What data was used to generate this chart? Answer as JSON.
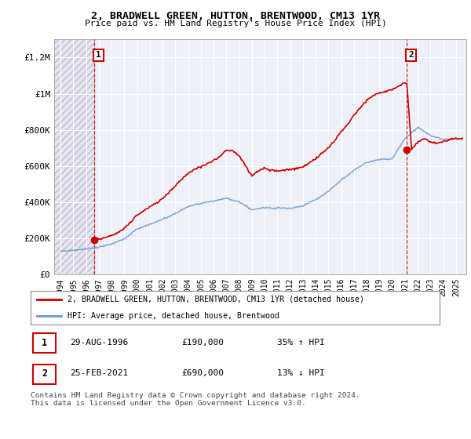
{
  "title": "2, BRADWELL GREEN, HUTTON, BRENTWOOD, CM13 1YR",
  "subtitle": "Price paid vs. HM Land Registry's House Price Index (HPI)",
  "ylabel_vals": [
    "£0",
    "£200K",
    "£400K",
    "£600K",
    "£800K",
    "£1M",
    "£1.2M"
  ],
  "ylim": [
    0,
    1300000
  ],
  "yticks": [
    0,
    200000,
    400000,
    600000,
    800000,
    1000000,
    1200000
  ],
  "sale1_date_num": 1996.66,
  "sale1_price": 190000,
  "sale1_label": "1",
  "sale2_date_num": 2021.15,
  "sale2_price": 690000,
  "sale2_label": "2",
  "legend_line1": "2, BRADWELL GREEN, HUTTON, BRENTWOOD, CM13 1YR (detached house)",
  "legend_line2": "HPI: Average price, detached house, Brentwood",
  "table_row1": [
    "1",
    "29-AUG-1996",
    "£190,000",
    "35% ↑ HPI"
  ],
  "table_row2": [
    "2",
    "25-FEB-2021",
    "£690,000",
    "13% ↓ HPI"
  ],
  "footer": "Contains HM Land Registry data © Crown copyright and database right 2024.\nThis data is licensed under the Open Government Licence v3.0.",
  "hpi_color": "#6699cc",
  "price_color": "#cc0000",
  "xlim_start": 1993.5,
  "xlim_end": 2025.8,
  "hpi_keyframes_x": [
    1994,
    1995,
    1996,
    1997,
    1998,
    1999,
    2000,
    2001,
    2002,
    2003,
    2004,
    2005,
    2006,
    2007,
    2008,
    2009,
    2010,
    2011,
    2012,
    2013,
    2014,
    2015,
    2016,
    2017,
    2018,
    2019,
    2020,
    2021,
    2022,
    2023,
    2024,
    2025
  ],
  "hpi_keyframes_y": [
    128000,
    133000,
    140000,
    152000,
    165000,
    195000,
    250000,
    275000,
    305000,
    335000,
    375000,
    390000,
    405000,
    420000,
    400000,
    358000,
    370000,
    368000,
    368000,
    382000,
    415000,
    462000,
    525000,
    580000,
    625000,
    640000,
    645000,
    760000,
    820000,
    775000,
    750000,
    755000
  ],
  "prop_keyframes_x": [
    1996.66,
    1997,
    1997.5,
    1998,
    1998.5,
    1999,
    1999.5,
    2000,
    2000.5,
    2001,
    2001.5,
    2002,
    2002.5,
    2003,
    2003.5,
    2004,
    2004.5,
    2005,
    2005.5,
    2006,
    2006.5,
    2007,
    2007.5,
    2008,
    2008.5,
    2009,
    2009.5,
    2010,
    2010.5,
    2011,
    2011.5,
    2012,
    2012.5,
    2013,
    2013.5,
    2014,
    2014.5,
    2015,
    2015.5,
    2016,
    2016.5,
    2017,
    2017.5,
    2018,
    2018.5,
    2019,
    2019.5,
    2020,
    2020.5,
    2021,
    2021.15,
    2021.5,
    2022,
    2022.5,
    2023,
    2023.5,
    2024,
    2024.5,
    2025
  ],
  "prop_keyframes_y": [
    190000,
    195000,
    205000,
    215000,
    230000,
    255000,
    290000,
    330000,
    355000,
    375000,
    395000,
    420000,
    455000,
    490000,
    525000,
    560000,
    580000,
    595000,
    610000,
    630000,
    650000,
    685000,
    680000,
    655000,
    600000,
    545000,
    570000,
    585000,
    575000,
    570000,
    575000,
    580000,
    585000,
    595000,
    615000,
    640000,
    670000,
    700000,
    740000,
    790000,
    830000,
    880000,
    920000,
    960000,
    985000,
    1000000,
    1010000,
    1020000,
    1040000,
    1060000,
    1050000,
    690000,
    730000,
    750000,
    730000,
    720000,
    730000,
    740000,
    745000
  ]
}
